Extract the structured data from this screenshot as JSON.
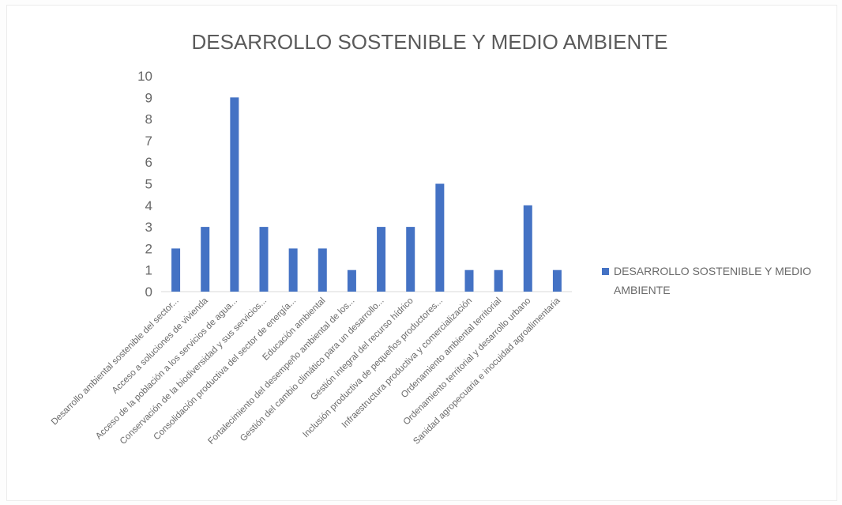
{
  "chart_data": {
    "type": "bar",
    "title": "DESARROLLO SOSTENIBLE Y MEDIO AMBIENTE",
    "xlabel": "",
    "ylabel": "",
    "ylim": [
      0,
      10
    ],
    "yticks": [
      0,
      1,
      2,
      3,
      4,
      5,
      6,
      7,
      8,
      9,
      10
    ],
    "grid": false,
    "legend_position": "right",
    "color": "#4472c4",
    "categories": [
      "Desarrollo ambiental sostenible del sector...",
      "Acceso a soluciones de vivienda",
      "Acceso de la población a los servicios de agua...",
      "Conservación de la biodiversidad y sus servicios...",
      "Consolidación productiva del sector de energía...",
      "Educación ambiental",
      "Fortalecimiento del desempeño ambiental de los...",
      "Gestión del cambio climático para un desarrollo...",
      "Gestión integral del recurso hídrico",
      "Inclusión productiva de pequeños productores...",
      "Infraestructura productiva y comercialización",
      "Ordenamiento ambiental territorial",
      "Ordenamiento territorial y desarrollo urbano",
      "Sanidad agropecuaria e inocuidad agroalimentaria"
    ],
    "series": [
      {
        "name": "DESARROLLO SOSTENIBLE Y MEDIO AMBIENTE",
        "legend_lines": [
          "DESARROLLO SOSTENIBLE Y MEDIO",
          "AMBIENTE"
        ],
        "values": [
          2,
          3,
          9,
          3,
          2,
          2,
          1,
          3,
          3,
          5,
          1,
          1,
          4,
          1
        ]
      }
    ]
  }
}
